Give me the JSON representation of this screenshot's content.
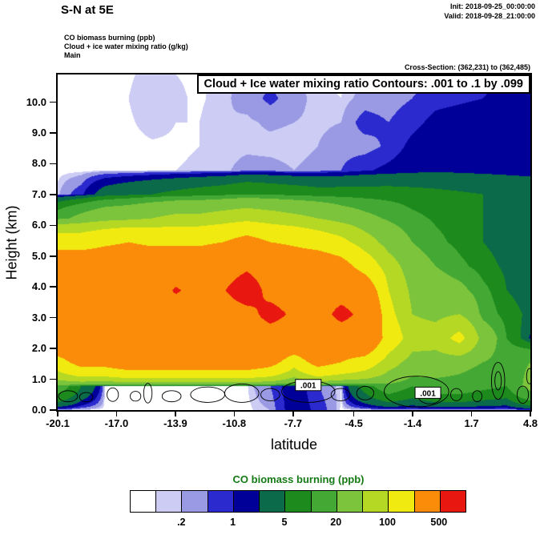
{
  "header": {
    "title": "S-N at 5E",
    "init": "Init: 2018-09-25_00:00:00",
    "valid": "Valid: 2018-09-28_21:00:00",
    "field_lines": {
      "line1": "CO biomass burning   (ppb)",
      "line2": "Cloud + ice water mixing ratio   (g/kg)",
      "line3": "Main"
    },
    "cross_section": "Cross-Section: (362,231) to (362,485)"
  },
  "chart_data": {
    "type": "contour",
    "title": "S-N at 5E",
    "xlabel": "latitude",
    "ylabel": "Height (km)",
    "units": "ppb",
    "xlim": [
      -20.1,
      4.8
    ],
    "ylim": [
      0,
      10.9
    ],
    "x_ticks": [
      -20.1,
      -17.0,
      -13.9,
      -10.8,
      -7.7,
      -4.5,
      -1.4,
      1.7,
      4.8
    ],
    "x_tick_labels": [
      "-20.1",
      "-17.0",
      "-13.9",
      "-10.8",
      "-7.7",
      "-4.5",
      "-1.4",
      "1.7",
      "4.8"
    ],
    "y_ticks": [
      0,
      1,
      2,
      3,
      4,
      5,
      6,
      7,
      8,
      9,
      10
    ],
    "y_tick_labels": [
      "0.0",
      "1.0",
      "2.0",
      "3.0",
      "4.0",
      "5.0",
      "6.0",
      "7.0",
      "8.0",
      "9.0",
      "10.0"
    ],
    "levels": [
      0.1,
      0.2,
      0.5,
      1,
      2,
      5,
      10,
      20,
      50,
      100,
      200,
      500
    ],
    "colors": [
      "#ffffff",
      "#ccccf4",
      "#9a9ae4",
      "#2a2ace",
      "#000098",
      "#0a6a4a",
      "#1c8a1c",
      "#44a834",
      "#7cc43c",
      "#b4d824",
      "#f0ea10",
      "#fa8c0a",
      "#e81810"
    ],
    "grid": {
      "x0": -20.1,
      "x1": 4.8,
      "y0": 0,
      "y1": 10.9,
      "ncols": 21,
      "nrows": 15,
      "values": [
        [
          0.06,
          0.05,
          0.05,
          0.05,
          0.05,
          0.05,
          0.05,
          0.05,
          0.06,
          0.2,
          1.5,
          0.8,
          0.06,
          0.05,
          0.05,
          0.06,
          0.08,
          0.08,
          0.08,
          0.1,
          0.4
        ],
        [
          15,
          5,
          0.08,
          0.08,
          0.08,
          0.08,
          0.08,
          0.08,
          0.08,
          0.5,
          1.5,
          0.5,
          0.1,
          7,
          15,
          10,
          15,
          15,
          12,
          10,
          25
        ],
        [
          150,
          250,
          250,
          300,
          300,
          300,
          300,
          300,
          300,
          250,
          130,
          250,
          200,
          150,
          70,
          35,
          30,
          25,
          20,
          15,
          20
        ],
        [
          350,
          350,
          350,
          350,
          350,
          350,
          350,
          350,
          350,
          350,
          350,
          350,
          300,
          350,
          150,
          70,
          70,
          120,
          35,
          10,
          1.5
        ],
        [
          350,
          350,
          350,
          350,
          350,
          350,
          350,
          350,
          400,
          600,
          450,
          350,
          600,
          400,
          120,
          50,
          40,
          50,
          15,
          7,
          4
        ],
        [
          300,
          350,
          350,
          350,
          350,
          530,
          400,
          480,
          680,
          400,
          350,
          350,
          350,
          300,
          100,
          40,
          30,
          25,
          12,
          5,
          3
        ],
        [
          300,
          300,
          300,
          300,
          300,
          300,
          300,
          350,
          450,
          350,
          300,
          300,
          250,
          150,
          70,
          30,
          20,
          12,
          7,
          4,
          2.5
        ],
        [
          150,
          150,
          180,
          200,
          180,
          180,
          180,
          200,
          250,
          200,
          180,
          150,
          120,
          70,
          35,
          20,
          12,
          8,
          5,
          3,
          2
        ],
        [
          15,
          25,
          35,
          40,
          50,
          60,
          60,
          70,
          80,
          70,
          60,
          50,
          35,
          25,
          18,
          12,
          9,
          7,
          5,
          3.5,
          2.5
        ],
        [
          0.15,
          0.8,
          3,
          4,
          5,
          6,
          7,
          8,
          10,
          9,
          8,
          7,
          7,
          7,
          7,
          6.5,
          6,
          5.5,
          5,
          4.5,
          4
        ],
        [
          0.05,
          0.05,
          0.06,
          0.06,
          0.08,
          0.1,
          0.12,
          0.15,
          0.3,
          0.3,
          0.2,
          0.3,
          0.5,
          0.9,
          1.2,
          1.5,
          1.7,
          1.6,
          1.5,
          1.4,
          1.3
        ],
        [
          0.05,
          0.05,
          0.05,
          0.06,
          0.08,
          0.08,
          0.1,
          0.12,
          0.15,
          0.12,
          0.1,
          0.2,
          0.35,
          0.3,
          0.6,
          1.2,
          1.5,
          1.5,
          1.5,
          1.5,
          1.5
        ],
        [
          0.05,
          0.05,
          0.06,
          0.08,
          0.15,
          0.1,
          0.1,
          0.2,
          0.15,
          0.25,
          0.2,
          0.15,
          0.2,
          0.7,
          0.5,
          0.8,
          1.2,
          1.3,
          1.4,
          1.5,
          1.5
        ],
        [
          0.05,
          0.05,
          0.06,
          0.1,
          0.2,
          0.12,
          0.08,
          0.15,
          0.3,
          0.6,
          0.3,
          0.12,
          0.1,
          0.3,
          0.3,
          0.5,
          0.8,
          0.9,
          1,
          1.2,
          1.4
        ],
        [
          0.05,
          0.05,
          0.05,
          0.08,
          0.15,
          0.1,
          0.08,
          0.15,
          0.25,
          0.4,
          0.2,
          0.1,
          0.08,
          0.15,
          0.2,
          0.3,
          0.4,
          0.5,
          0.8,
          1.3,
          1.6
        ]
      ]
    },
    "colorbar": {
      "title": "CO biomass burning  (ppb)",
      "title_color": "#157a15",
      "labels": [
        ".2",
        "1",
        "5",
        "20",
        "100",
        "500"
      ],
      "label_level_indices": [
        1,
        3,
        5,
        7,
        9,
        11
      ]
    },
    "overlay": {
      "banner": "Cloud + Ice water mixing ratio Contours: .001 to .1 by .099",
      "labels": [
        {
          "text": ".001",
          "x": -6.9,
          "y": 0.8
        },
        {
          "text": ".001",
          "x": -0.6,
          "y": 0.55
        }
      ],
      "contours": [
        {
          "x": -19.55,
          "y": 0.45,
          "rx": 0.5,
          "ry": 0.18
        },
        {
          "x": -18.6,
          "y": 0.42,
          "rx": 0.35,
          "ry": 0.15
        },
        {
          "x": -17.2,
          "y": 0.5,
          "rx": 0.3,
          "ry": 0.22
        },
        {
          "x": -16.0,
          "y": 0.45,
          "rx": 0.28,
          "ry": 0.16
        },
        {
          "x": -15.35,
          "y": 0.55,
          "rx": 0.22,
          "ry": 0.32
        },
        {
          "x": -14.1,
          "y": 0.45,
          "rx": 0.5,
          "ry": 0.18
        },
        {
          "x": -12.2,
          "y": 0.5,
          "rx": 0.9,
          "ry": 0.25
        },
        {
          "x": -10.4,
          "y": 0.55,
          "rx": 0.9,
          "ry": 0.3
        },
        {
          "x": -8.9,
          "y": 0.5,
          "rx": 0.5,
          "ry": 0.2
        },
        {
          "x": -6.9,
          "y": 0.6,
          "rx": 1.4,
          "ry": 0.35
        },
        {
          "x": -5.2,
          "y": 0.5,
          "rx": 0.5,
          "ry": 0.2
        },
        {
          "x": -3.9,
          "y": 0.55,
          "rx": 0.45,
          "ry": 0.22
        },
        {
          "x": -1.2,
          "y": 0.6,
          "rx": 1.7,
          "ry": 0.5
        },
        {
          "x": -0.5,
          "y": 0.45,
          "rx": 0.6,
          "ry": 0.25
        },
        {
          "x": 0.9,
          "y": 0.5,
          "rx": 0.3,
          "ry": 0.2
        },
        {
          "x": 2.0,
          "y": 0.45,
          "rx": 0.25,
          "ry": 0.18
        },
        {
          "x": 3.1,
          "y": 0.95,
          "rx": 0.35,
          "ry": 0.6
        },
        {
          "x": 3.1,
          "y": 0.95,
          "rx": 0.17,
          "ry": 0.3
        },
        {
          "x": 4.4,
          "y": 0.5,
          "rx": 0.3,
          "ry": 0.28
        },
        {
          "x": 4.75,
          "y": 1.1,
          "rx": 0.15,
          "ry": 0.25
        }
      ]
    }
  }
}
